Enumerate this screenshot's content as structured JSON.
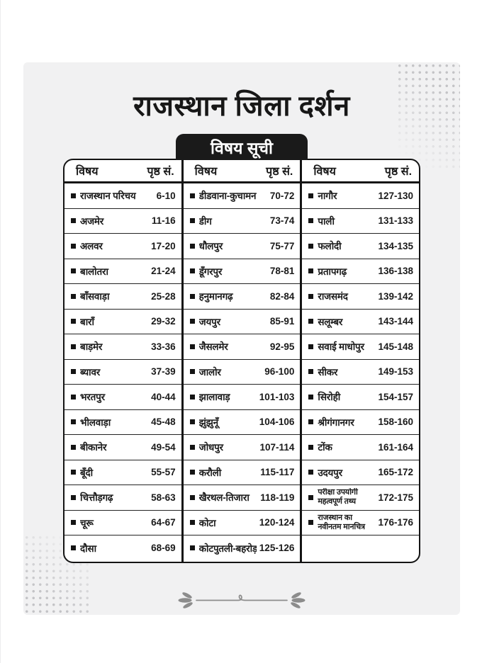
{
  "title": "राजस्थान जिला दर्शन",
  "toc": {
    "heading": "विषय सूची",
    "col_headers": {
      "topic": "विषय",
      "page": "पृष्ठ सं."
    },
    "columns": [
      {
        "rows": [
          {
            "topic": "राजस्थान परिचय",
            "pages": "6-10"
          },
          {
            "topic": "अजमेर",
            "pages": "11-16"
          },
          {
            "topic": "अलवर",
            "pages": "17-20"
          },
          {
            "topic": "बालोतरा",
            "pages": "21-24"
          },
          {
            "topic": "बाँसवाड़ा",
            "pages": "25-28"
          },
          {
            "topic": "बाराँ",
            "pages": "29-32"
          },
          {
            "topic": "बाड़मेर",
            "pages": "33-36"
          },
          {
            "topic": "ब्यावर",
            "pages": "37-39"
          },
          {
            "topic": "भरतपुर",
            "pages": "40-44"
          },
          {
            "topic": "भीलवाड़ा",
            "pages": "45-48"
          },
          {
            "topic": "बीकानेर",
            "pages": "49-54"
          },
          {
            "topic": "बूँदी",
            "pages": "55-57"
          },
          {
            "topic": "चित्तौड़गढ़",
            "pages": "58-63"
          },
          {
            "topic": "चूरू",
            "pages": "64-67"
          },
          {
            "topic": "दौसा",
            "pages": "68-69"
          }
        ]
      },
      {
        "rows": [
          {
            "topic": "डीडवाना-कुचामन",
            "pages": "70-72"
          },
          {
            "topic": "डीग",
            "pages": "73-74"
          },
          {
            "topic": "धौलपुर",
            "pages": "75-77"
          },
          {
            "topic": "डूँगरपुर",
            "pages": "78-81"
          },
          {
            "topic": "हनुमानगढ़",
            "pages": "82-84"
          },
          {
            "topic": "जयपुर",
            "pages": "85-91"
          },
          {
            "topic": "जैसलमेर",
            "pages": "92-95"
          },
          {
            "topic": "जालोर",
            "pages": "96-100"
          },
          {
            "topic": "झालावाड़",
            "pages": "101-103"
          },
          {
            "topic": "झुंझुनूँ",
            "pages": "104-106"
          },
          {
            "topic": "जोधपुर",
            "pages": "107-114"
          },
          {
            "topic": "करौली",
            "pages": "115-117"
          },
          {
            "topic": "खैरथल-तिजारा",
            "pages": "118-119"
          },
          {
            "topic": "कोटा",
            "pages": "120-124"
          },
          {
            "topic": "कोटपुतली-बहरोड़",
            "pages": "125-126"
          }
        ]
      },
      {
        "rows": [
          {
            "topic": "नागौर",
            "pages": "127-130"
          },
          {
            "topic": "पाली",
            "pages": "131-133"
          },
          {
            "topic": "फलोदी",
            "pages": "134-135"
          },
          {
            "topic": "प्रतापगढ़",
            "pages": "136-138"
          },
          {
            "topic": "राजसमंद",
            "pages": "139-142"
          },
          {
            "topic": "सलूम्बर",
            "pages": "143-144"
          },
          {
            "topic": "सवाई माधोपुर",
            "pages": "145-148"
          },
          {
            "topic": "सीकर",
            "pages": "149-153"
          },
          {
            "topic": "सिरोही",
            "pages": "154-157"
          },
          {
            "topic": "श्रीगंगानगर",
            "pages": "158-160"
          },
          {
            "topic": "टोंक",
            "pages": "161-164"
          },
          {
            "topic": "उदयपुर",
            "pages": "165-172"
          },
          {
            "topic": "परीक्षा उपयोगी महत्वपूर्ण तथ्य",
            "pages": "172-175",
            "two_line": true
          },
          {
            "topic": "राजस्थान का नवीनतम मानचित्र",
            "pages": "176-176",
            "two_line": true
          }
        ]
      }
    ]
  },
  "colors": {
    "ink": "#1a1a1a",
    "page_bg": "#f1f1f2",
    "tab_bg": "#1a1a1a",
    "tab_text": "#ffffff",
    "dots": "#c3c3c6",
    "flourish": "#8c8c8c"
  }
}
